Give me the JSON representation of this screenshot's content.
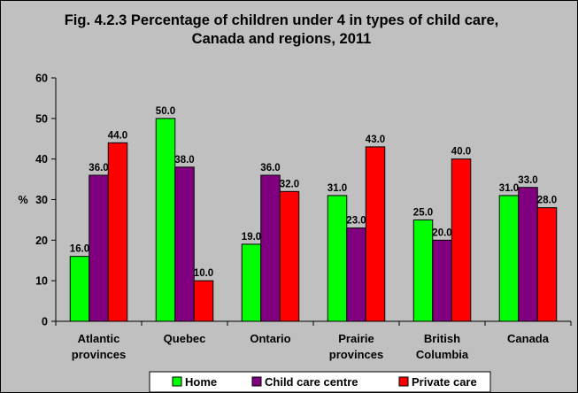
{
  "chart_data": {
    "type": "bar",
    "title_line1": "Fig. 4.2.3 Percentage of children under 4 in types of child care,",
    "title_line2": "Canada and regions, 2011",
    "ylabel": "%",
    "xlabel": "",
    "ylim": [
      0,
      60
    ],
    "yticks": [
      "0",
      "10",
      "20",
      "30",
      "40",
      "50",
      "60"
    ],
    "grid": false,
    "legend_position": "bottom",
    "categories": [
      [
        "Atlantic",
        "provinces"
      ],
      [
        "Quebec"
      ],
      [
        "Ontario"
      ],
      [
        "Prairie",
        "provinces"
      ],
      [
        "British",
        "Columbia"
      ],
      [
        "Canada"
      ]
    ],
    "series": [
      {
        "name": "Home",
        "color": "#00ff00",
        "values": [
          16.0,
          50.0,
          19.0,
          31.0,
          25.0,
          31.0
        ]
      },
      {
        "name": "Child care centre",
        "color": "#800080",
        "values": [
          36.0,
          38.0,
          36.0,
          23.0,
          20.0,
          33.0
        ]
      },
      {
        "name": "Private care",
        "color": "#ff0000",
        "values": [
          44.0,
          10.0,
          32.0,
          43.0,
          40.0,
          28.0
        ]
      }
    ],
    "plot_background": "#c0c0c0",
    "bar_border": "#000000"
  }
}
